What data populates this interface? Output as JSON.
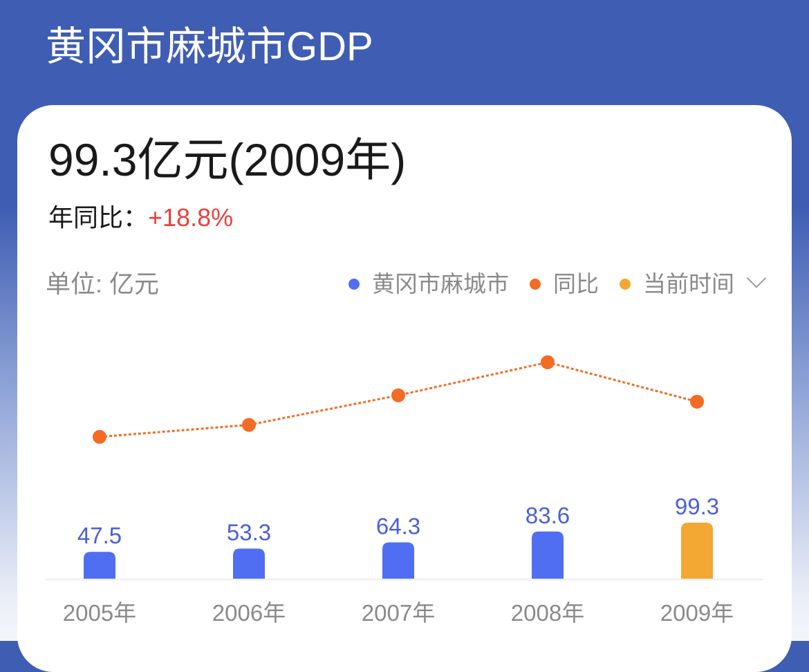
{
  "header": {
    "title": "黄冈市麻城市GDP"
  },
  "summary": {
    "value_text": "99.3亿元(2009年)",
    "yoy_label": "年同比：",
    "yoy_value": "+18.8%"
  },
  "unit_label": "单位: 亿元",
  "legend": [
    {
      "label": "黄冈市麻城市",
      "color": "#4f6ef2"
    },
    {
      "label": "同比",
      "color": "#f46b23"
    },
    {
      "label": "当前时间",
      "color": "#f2a833"
    }
  ],
  "chart_data": {
    "type": "bar",
    "categories": [
      "2005年",
      "2006年",
      "2007年",
      "2008年",
      "2009年"
    ],
    "series": [
      {
        "name": "黄冈市麻城市",
        "type": "bar",
        "values": [
          47.5,
          53.3,
          64.3,
          83.6,
          99.3
        ],
        "labels": [
          "47.5",
          "53.3",
          "64.3",
          "83.6",
          "99.3"
        ]
      },
      {
        "name": "同比",
        "type": "line",
        "style": "dotted",
        "values": [
          8.8,
          12.2,
          20.6,
          30.0,
          18.8
        ]
      }
    ],
    "highlight_index": 4,
    "unit": "亿元",
    "colors": {
      "bar": "#4f6ef2",
      "highlight": "#f2a833",
      "line": "#f46b23",
      "label": "#4a5fd8",
      "axis_text": "#8a8a8a"
    }
  }
}
